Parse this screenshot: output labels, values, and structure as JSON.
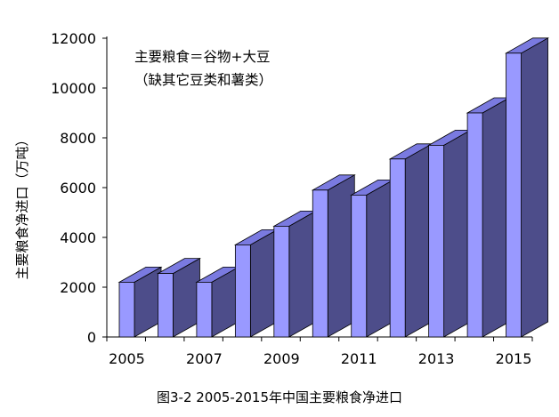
{
  "chart_data": {
    "type": "bar",
    "categories": [
      "2005",
      "2006",
      "2007",
      "2008",
      "2009",
      "2010",
      "2011",
      "2012",
      "2013",
      "2014",
      "2015"
    ],
    "x_tick_labels": [
      "2005",
      "2007",
      "2009",
      "2011",
      "2013",
      "2015"
    ],
    "values": [
      2200,
      2550,
      2200,
      3700,
      4450,
      5900,
      5700,
      7150,
      7700,
      9000,
      11400
    ],
    "ylabel": "主要粮食净进口（万吨）",
    "ylim": [
      0,
      12000
    ],
    "yticks": [
      0,
      2000,
      4000,
      6000,
      8000,
      10000,
      12000
    ],
    "annotation_lines": [
      "主要粮食＝谷物+大豆",
      "（缺其它豆类和薯类）"
    ],
    "caption": "图3-2   2005-2015年中国主要粮食净进口",
    "grid": false,
    "legend": "none",
    "colors": {
      "bar_front": "#9999ff",
      "bar_side": "#4d4d8a",
      "bar_top": "#7a7ae0",
      "axis": "#000000"
    }
  }
}
